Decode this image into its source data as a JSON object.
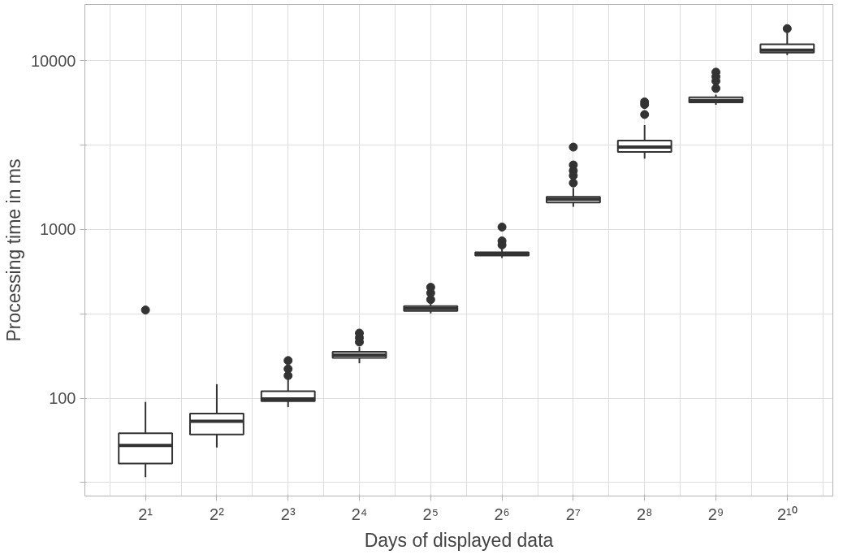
{
  "chart_data": {
    "type": "box",
    "xlabel": "Days of displayed data",
    "ylabel": "Processing time in ms",
    "log": "y",
    "grid": true,
    "color": "#333333",
    "categories": [
      "2¹",
      "2²",
      "2³",
      "2⁴",
      "2⁵",
      "2⁶",
      "2⁷",
      "2⁸",
      "2⁹",
      "2¹⁰"
    ],
    "ylim": [
      26.3,
      21544
    ],
    "yticks": [
      {
        "value": 31.62,
        "label": null
      },
      100,
      {
        "value": 316.2,
        "label": null
      },
      1000,
      {
        "value": 3162,
        "label": null
      },
      10000
    ],
    "boxes": [
      {
        "low": 34,
        "q1": 41,
        "median": 52.5,
        "q3": 62,
        "high": 95,
        "outliers": [
          333
        ]
      },
      {
        "low": 51,
        "q1": 61,
        "median": 73,
        "q3": 81,
        "high": 121
      },
      {
        "low": 88.5,
        "q1": 96,
        "median": 99,
        "q3": 110,
        "high": 129,
        "outliers": [
          136,
          149,
          167
        ]
      },
      {
        "low": 161,
        "q1": 173,
        "median": 180,
        "q3": 188,
        "high": 201,
        "outliers": [
          215,
          228,
          243
        ]
      },
      {
        "low": 318,
        "q1": 329,
        "median": 340,
        "q3": 351,
        "high": 363,
        "outliers": [
          384,
          420,
          454
        ]
      },
      {
        "low": 677,
        "q1": 700,
        "median": 716,
        "q3": 733,
        "high": 766,
        "outliers": [
          809,
          855,
          1033
        ]
      },
      {
        "low": 1364,
        "q1": 1443,
        "median": 1509,
        "q3": 1560,
        "high": 1762,
        "outliers": [
          1884,
          2084,
          2228,
          2410,
          3076
        ]
      },
      {
        "low": 2630,
        "q1": 2878,
        "median": 3076,
        "q3": 3366,
        "high": 4150,
        "outliers": [
          4800,
          5500,
          5700
        ]
      },
      {
        "low": 5480,
        "q1": 5670,
        "median": 5800,
        "q3": 6070,
        "high": 6300,
        "outliers": [
          6850,
          7570,
          8050,
          8550
        ]
      },
      {
        "low": 10800,
        "q1": 11170,
        "median": 11560,
        "q3": 12500,
        "high": 14800,
        "outliers": [
          15500
        ]
      }
    ]
  }
}
